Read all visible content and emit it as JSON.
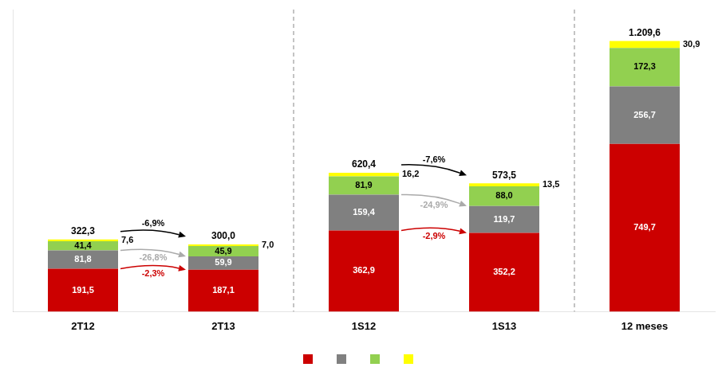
{
  "chart_data": {
    "type": "bar",
    "stacked": true,
    "data_labels": true,
    "legend": "bottom",
    "grid": false,
    "tick_labels": "x",
    "categories": [
      "2T12",
      "2T13",
      "1S12",
      "1S13",
      "12 meses"
    ],
    "ylim": [
      0,
      1350
    ],
    "series": [
      {
        "color": "#cc0000",
        "values": [
          191.5,
          187.1,
          362.9,
          352.2,
          749.7
        ],
        "value_labels": [
          "191,5",
          "187,1",
          "362,9",
          "352,2",
          "749,7"
        ]
      },
      {
        "color": "#808080",
        "values": [
          81.8,
          59.9,
          159.4,
          119.7,
          256.7
        ],
        "value_labels": [
          "81,8",
          "59,9",
          "159,4",
          "119,7",
          "256,7"
        ]
      },
      {
        "color": "#92d050",
        "values": [
          41.4,
          45.9,
          81.9,
          88.0,
          172.3
        ],
        "value_labels": [
          "41,4",
          "45,9",
          "81,9",
          "88,0",
          "172,3"
        ]
      },
      {
        "color": "#ffff00",
        "values": [
          7.6,
          7.0,
          16.2,
          13.5,
          30.9
        ],
        "value_labels": [
          "7,6",
          "7,0",
          "16,2",
          "13,5",
          "30,9"
        ]
      }
    ],
    "totals": [
      322.3,
      300.0,
      620.4,
      573.5,
      1209.6
    ],
    "total_labels": [
      "322,3",
      "300,0",
      "620,4",
      "573,5",
      "1.209,6"
    ],
    "separators_after": [
      "2T13",
      "1S13"
    ],
    "annotations": [
      {
        "text": "-6,9%",
        "from": "2T12",
        "to": "2T13",
        "level": 3,
        "color": "black"
      },
      {
        "text": "-26,8%",
        "from": "2T12",
        "to": "2T13",
        "level": 1,
        "color": "#aaaaaa"
      },
      {
        "text": "-2,3%",
        "from": "2T12",
        "to": "2T13",
        "level": 0,
        "color": "#cc0000"
      },
      {
        "text": "-7,6%",
        "from": "1S12",
        "to": "1S13",
        "level": 3,
        "color": "black"
      },
      {
        "text": "-24,9%",
        "from": "1S12",
        "to": "1S13",
        "level": 1,
        "color": "#aaaaaa"
      },
      {
        "text": "-2,9%",
        "from": "1S12",
        "to": "1S13",
        "level": 0,
        "color": "#cc0000"
      }
    ]
  }
}
